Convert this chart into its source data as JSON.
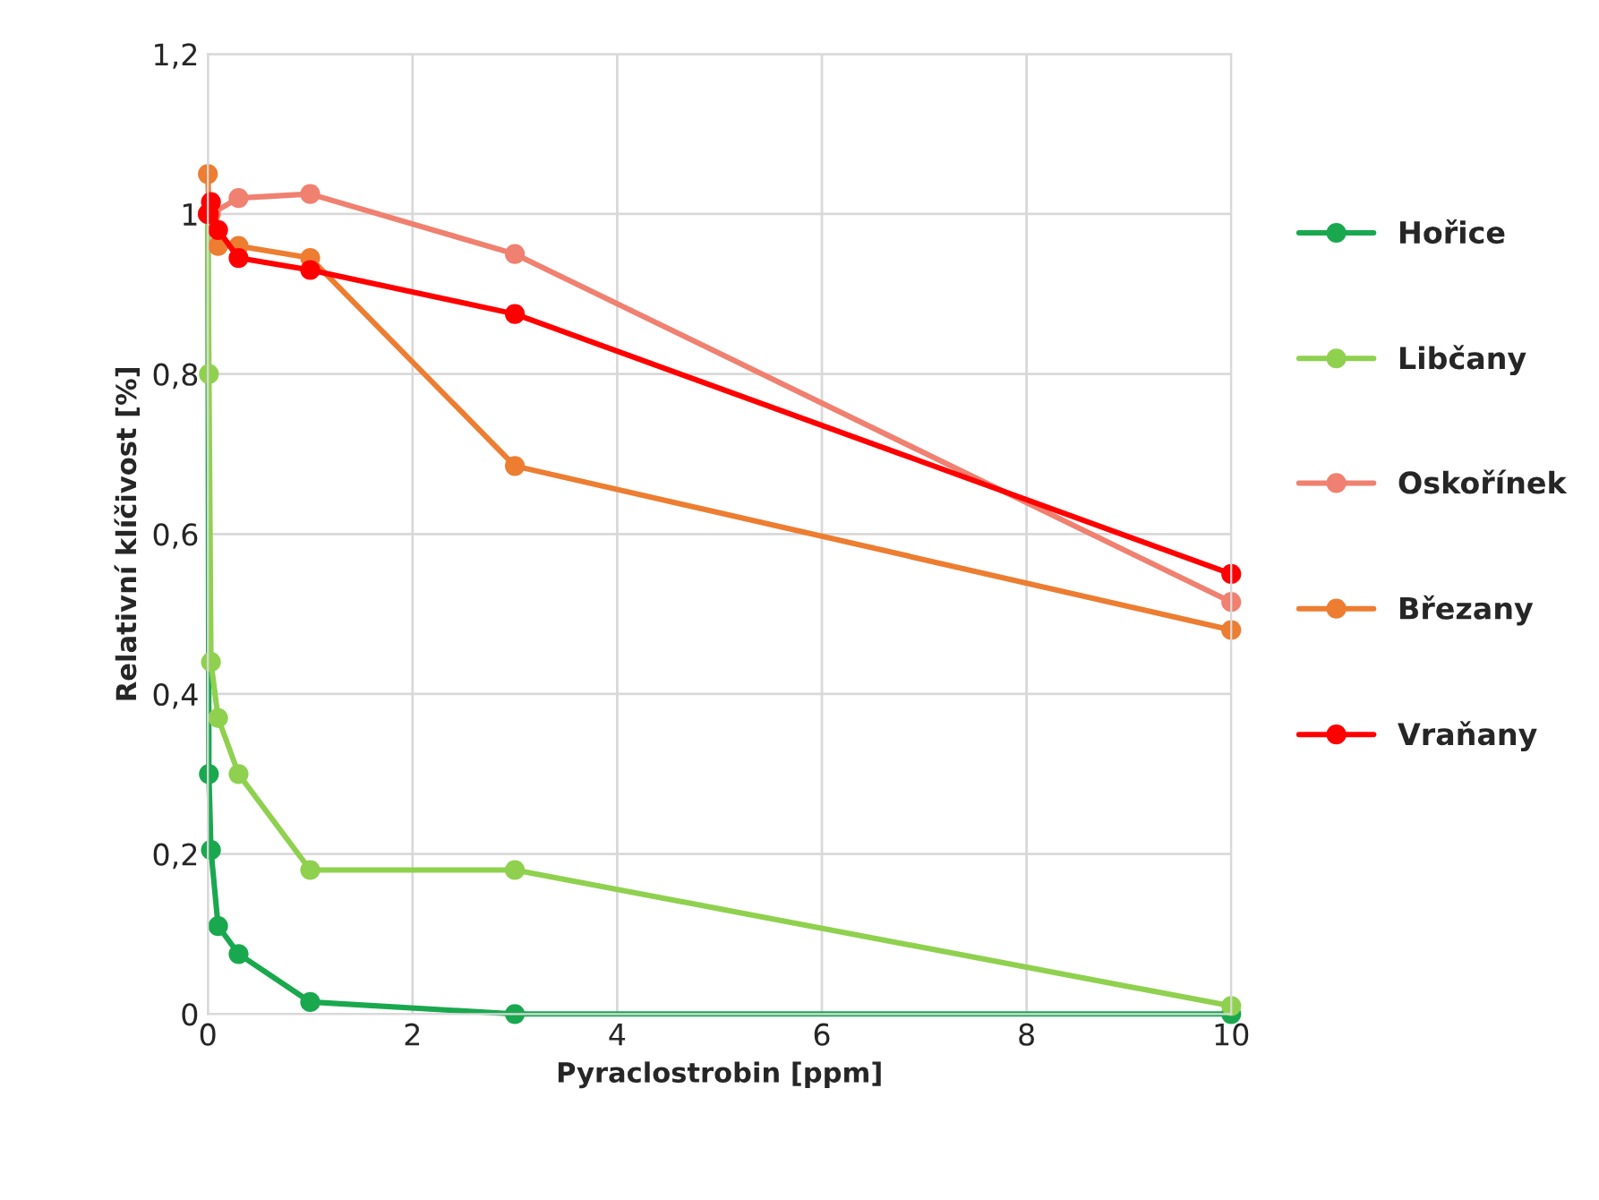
{
  "chart_data": {
    "type": "line",
    "xlabel": "Pyraclostrobin [ppm]",
    "ylabel": "Relativní klíčivost [%]",
    "xlim": [
      0,
      10
    ],
    "xticks": [
      0,
      2,
      4,
      6,
      8,
      10
    ],
    "ylim": [
      0,
      1.2
    ],
    "yticks": [
      0,
      {
        "value": 0.2,
        "label": "0,2"
      },
      {
        "value": 0.4,
        "label": "0,4"
      },
      {
        "value": 0.6,
        "label": "0,6"
      },
      {
        "value": 0.8,
        "label": "0,8"
      },
      1,
      {
        "value": 1.2,
        "label": "1,2"
      }
    ],
    "grid": true,
    "legend": "right",
    "marker": "circle",
    "line_style": "solid",
    "series": [
      {
        "name": "Hořice",
        "color": "#1aa84f",
        "x": [
          0,
          0.01,
          0.03,
          0.1,
          0.3,
          1,
          3,
          10
        ],
        "values": [
          1.0,
          0.3,
          0.205,
          0.11,
          0.075,
          0.015,
          0,
          0
        ]
      },
      {
        "name": "Libčany",
        "color": "#8fd14f",
        "x": [
          0,
          0.01,
          0.03,
          0.1,
          0.3,
          1,
          3,
          10
        ],
        "values": [
          1.0,
          0.8,
          0.44,
          0.37,
          0.3,
          0.18,
          0.18,
          0.01
        ]
      },
      {
        "name": "Oskořínek",
        "color": "#f08070",
        "x": [
          0,
          0.03,
          0.3,
          1,
          3,
          10
        ],
        "values": [
          1.0,
          1.0,
          1.02,
          1.025,
          0.95,
          0.515
        ]
      },
      {
        "name": "Březany",
        "color": "#ed7d31",
        "x": [
          0,
          0.01,
          0.1,
          0.3,
          1,
          3,
          10
        ],
        "values": [
          1.05,
          1.0,
          0.96,
          0.96,
          0.945,
          0.685,
          0.48
        ]
      },
      {
        "name": "Vraňany",
        "color": "#ff0000",
        "x": [
          0,
          0.01,
          0.03,
          0.1,
          0.3,
          1,
          3,
          10
        ],
        "values": [
          1.0,
          1.0,
          1.015,
          0.98,
          0.945,
          0.93,
          0.875,
          0.55
        ]
      }
    ]
  }
}
